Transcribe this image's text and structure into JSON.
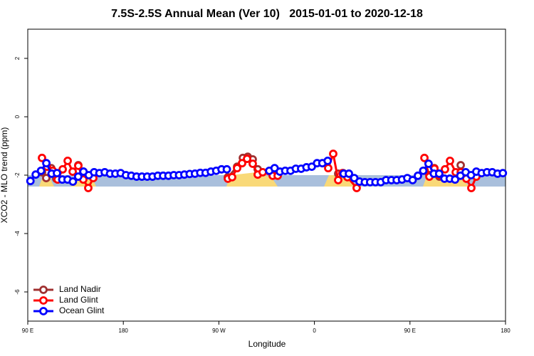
{
  "chart_data": {
    "type": "line",
    "title": "7.5S-2.5S Annual Mean (Ver 10)   2015-01-01 to 2020-12-18",
    "x_label": "Longitude",
    "y_label": "XCO2 - MLO trend (ppm)",
    "xlim": [
      90,
      540
    ],
    "ylim": [
      -7,
      3
    ],
    "xticks": [
      {
        "value": 90,
        "label": "90 E"
      },
      {
        "value": 180,
        "label": "180"
      },
      {
        "value": 270,
        "label": "90 W"
      },
      {
        "value": 360,
        "label": "0"
      },
      {
        "value": 450,
        "label": "90 E"
      },
      {
        "value": 540,
        "label": "180"
      }
    ],
    "yticks": [
      -6,
      -4,
      -2,
      0,
      2
    ],
    "grid": false,
    "legend": "bottomleft",
    "series": [
      {
        "name": "Land Nadir",
        "color": "#a03030",
        "x": [
          103.4,
          107.4,
          112.1,
          116.8,
          137.6,
          142.3,
          278.5,
          287.2,
          292.6,
          297.2,
          301.9,
          306.6,
          382.4,
          387.1,
          463.6,
          468.3,
          473,
          477.7,
          497.8,
          502.5
        ],
        "values": [
          -1.9,
          -2.1,
          -1.76,
          -2.12,
          -1.66,
          -1.88,
          -2.07,
          -1.71,
          -1.41,
          -1.37,
          -1.46,
          -1.8,
          -1.95,
          -1.93,
          -1.85,
          -2.0,
          -1.76,
          -2.05,
          -1.66,
          -2.0
        ]
      },
      {
        "name": "Land Glint",
        "color": "#ff0000",
        "x": [
          103.4,
          108.1,
          113.5,
          118.2,
          122.9,
          127.6,
          132.3,
          137.6,
          142.3,
          147,
          151.7,
          278.5,
          282.5,
          287.2,
          291.9,
          296.6,
          301.9,
          306.6,
          311.3,
          320.7,
          325.4,
          373,
          377.7,
          382.4,
          386.4,
          391.1,
          399.8,
          463.6,
          468.3,
          473,
          477.7,
          483,
          487.7,
          493.1,
          497.8,
          503.1,
          507.8,
          512.5
        ],
        "values": [
          -1.41,
          -1.71,
          -1.85,
          -2.15,
          -1.8,
          -1.51,
          -1.88,
          -1.68,
          -2.15,
          -2.44,
          -2.1,
          -2.12,
          -2.07,
          -1.76,
          -1.59,
          -1.44,
          -1.61,
          -1.98,
          -1.9,
          -2.02,
          -2.02,
          -1.76,
          -1.27,
          -2.17,
          -1.93,
          -2.07,
          -2.44,
          -1.41,
          -2.05,
          -1.78,
          -2.0,
          -1.8,
          -1.51,
          -1.9,
          -1.9,
          -2.12,
          -2.44,
          -2.05
        ]
      },
      {
        "name": "Ocean Glint",
        "color": "#0000ff",
        "x": [
          92.5,
          97.5,
          102.5,
          107.5,
          112.5,
          117.5,
          122.5,
          127.5,
          132.5,
          137.5,
          142.5,
          147.5,
          152.5,
          157.5,
          162.5,
          167.5,
          172.5,
          177.5,
          182.5,
          187.5,
          192.5,
          197.5,
          202.5,
          207.5,
          212.5,
          217.5,
          222.5,
          227.5,
          232.5,
          237.5,
          242.5,
          247.5,
          252.5,
          257.5,
          262.5,
          267.5,
          272.5,
          277.5,
          317.5,
          322.5,
          327.5,
          332.5,
          337.5,
          342.5,
          347.5,
          352.5,
          357.5,
          362.5,
          367.5,
          372.5,
          387.5,
          392.5,
          397.5,
          402.5,
          407.5,
          412.5,
          417.5,
          422.5,
          427.5,
          432.5,
          437.5,
          442.5,
          447.5,
          452.5,
          457.5,
          462.5,
          467.5,
          472.5,
          477.5,
          482.5,
          487.5,
          492.5,
          497.5,
          502.5,
          507.5,
          512.5,
          517.5,
          522.5,
          527.5,
          532.5,
          537.5
        ],
        "values": [
          -2.2,
          -1.98,
          -1.85,
          -1.59,
          -1.95,
          -1.93,
          -2.15,
          -2.15,
          -2.22,
          -2.05,
          -1.88,
          -2.0,
          -1.9,
          -1.93,
          -1.9,
          -1.95,
          -1.95,
          -1.93,
          -2.0,
          -2.02,
          -2.05,
          -2.05,
          -2.05,
          -2.05,
          -2.02,
          -2.02,
          -2.02,
          -2.0,
          -2.0,
          -1.98,
          -1.96,
          -1.95,
          -1.92,
          -1.92,
          -1.88,
          -1.85,
          -1.8,
          -1.8,
          -1.85,
          -1.76,
          -1.88,
          -1.85,
          -1.85,
          -1.78,
          -1.78,
          -1.73,
          -1.71,
          -1.59,
          -1.59,
          -1.51,
          -1.95,
          -1.95,
          -2.1,
          -2.22,
          -2.24,
          -2.24,
          -2.24,
          -2.24,
          -2.17,
          -2.17,
          -2.17,
          -2.15,
          -2.1,
          -2.17,
          -2.02,
          -1.85,
          -1.61,
          -1.95,
          -1.95,
          -2.12,
          -2.12,
          -2.15,
          -2.02,
          -1.9,
          -2.0,
          -1.88,
          -1.93,
          -1.9,
          -1.9,
          -1.95,
          -1.93
        ]
      }
    ]
  }
}
